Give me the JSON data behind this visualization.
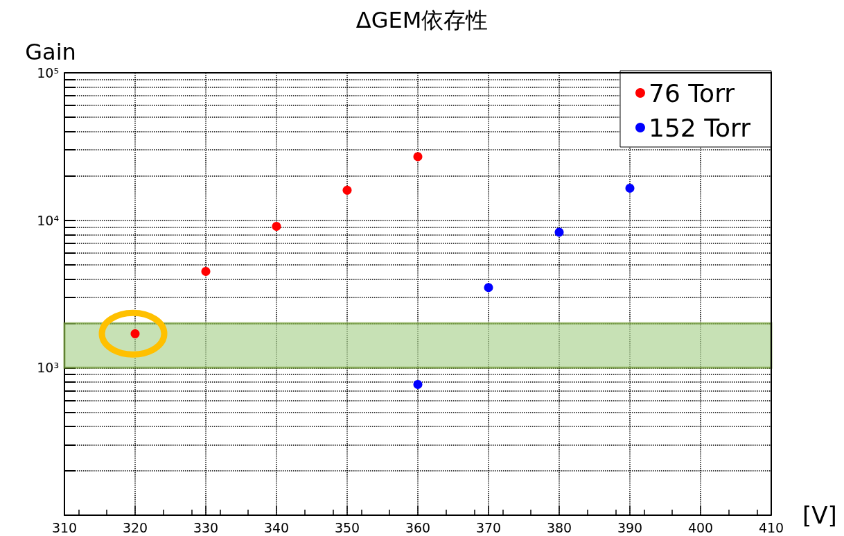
{
  "chart_data": {
    "type": "scatter",
    "title": "ΔGEM依存性",
    "xlabel": "[V]",
    "ylabel": "Gain",
    "xlim": [
      310,
      410
    ],
    "xticks": [
      310,
      320,
      330,
      340,
      350,
      360,
      370,
      380,
      390,
      400,
      410
    ],
    "ylim": [
      100,
      100000
    ],
    "log": "y",
    "yticks": [
      {
        "value": 100,
        "label": null
      },
      {
        "value": 200,
        "label": null
      },
      {
        "value": 300,
        "label": null
      },
      {
        "value": 400,
        "label": null
      },
      {
        "value": 500,
        "label": null
      },
      {
        "value": 600,
        "label": null
      },
      {
        "value": 700,
        "label": null
      },
      {
        "value": 800,
        "label": null
      },
      {
        "value": 900,
        "label": null
      },
      {
        "value": 1000,
        "label": "10³"
      },
      {
        "value": 2000,
        "label": null
      },
      {
        "value": 3000,
        "label": null
      },
      {
        "value": 4000,
        "label": null
      },
      {
        "value": 5000,
        "label": null
      },
      {
        "value": 6000,
        "label": null
      },
      {
        "value": 7000,
        "label": null
      },
      {
        "value": 8000,
        "label": null
      },
      {
        "value": 9000,
        "label": null
      },
      {
        "value": 10000,
        "label": "10⁴"
      },
      {
        "value": 20000,
        "label": null
      },
      {
        "value": 30000,
        "label": null
      },
      {
        "value": 40000,
        "label": null
      },
      {
        "value": 50000,
        "label": null
      },
      {
        "value": 60000,
        "label": null
      },
      {
        "value": 70000,
        "label": null
      },
      {
        "value": 80000,
        "label": null
      },
      {
        "value": 90000,
        "label": null
      },
      {
        "value": 100000,
        "label": "10⁵"
      }
    ],
    "series": [
      {
        "name": "76 Torr",
        "color": "#ff0000",
        "x": [
          320,
          330,
          340,
          350,
          360
        ],
        "values": [
          1700,
          4500,
          9100,
          16000,
          27000
        ]
      },
      {
        "name": "152 Torr",
        "color": "#0000ff",
        "x": [
          360,
          370,
          380,
          390
        ],
        "values": [
          770,
          3500,
          8300,
          16500
        ]
      }
    ],
    "bands": [
      {
        "axis": "y",
        "from": 1000,
        "to": 2000,
        "color": "#a9d18e"
      }
    ],
    "marker": "circle",
    "grid": true,
    "legend": "top right"
  }
}
